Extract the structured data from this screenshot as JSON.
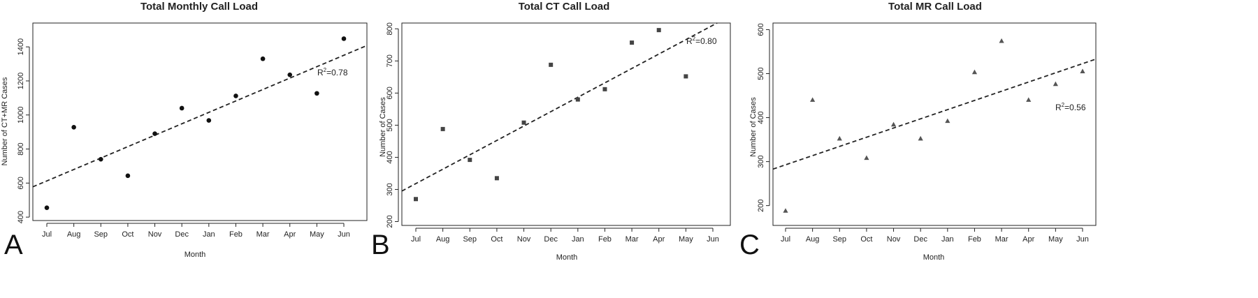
{
  "chart_data": [
    {
      "panel_letter": "A",
      "type": "scatter",
      "title": "Total Monthly Call Load",
      "xlabel": "Month",
      "ylabel": "Number of CT+MR Cases",
      "categories": [
        "Jul",
        "Aug",
        "Sep",
        "Oct",
        "Nov",
        "Dec",
        "Jan",
        "Feb",
        "Mar",
        "Apr",
        "May",
        "Jun"
      ],
      "values": [
        455,
        928,
        740,
        643,
        890,
        1040,
        968,
        1112,
        1330,
        1236,
        1127,
        1448
      ],
      "ylim": [
        380,
        1540
      ],
      "yticks": [
        400,
        600,
        800,
        1000,
        1200,
        1400
      ],
      "trend": {
        "start": 578,
        "end": 1408
      },
      "r2_label": {
        "text": "R",
        "sup": "2",
        "value": "=0.78"
      },
      "marker": "circle",
      "color": "#111111"
    },
    {
      "panel_letter": "B",
      "type": "scatter",
      "title": "Total CT Call Load",
      "xlabel": "Month",
      "ylabel": "Number of Cases",
      "categories": [
        "Jul",
        "Aug",
        "Sep",
        "Oct",
        "Nov",
        "Dec",
        "Jan",
        "Feb",
        "Mar",
        "Apr",
        "May",
        "Jun"
      ],
      "values": [
        270,
        488,
        392,
        335,
        508,
        688,
        580,
        612,
        757,
        796,
        652,
        null
      ],
      "ylim": [
        188,
        818
      ],
      "yticks": [
        200,
        300,
        400,
        500,
        600,
        700,
        800
      ],
      "trend": {
        "start": 295,
        "end": 840
      },
      "r2_label": {
        "text": "R",
        "sup": "2",
        "value": "=0.80"
      },
      "marker": "square",
      "color": "#444444"
    },
    {
      "panel_letter": "C",
      "type": "scatter",
      "title": "Total MR Call Load",
      "xlabel": "Month",
      "ylabel": "Number of Cases",
      "categories": [
        "Jul",
        "Aug",
        "Sep",
        "Oct",
        "Nov",
        "Dec",
        "Jan",
        "Feb",
        "Mar",
        "Apr",
        "May",
        "Jun"
      ],
      "values": [
        188,
        440,
        352,
        308,
        384,
        352,
        392,
        503,
        574,
        440,
        476,
        505
      ],
      "ylim": [
        155,
        615
      ],
      "yticks": [
        200,
        300,
        400,
        500,
        600
      ],
      "trend": {
        "start": 283,
        "end": 533
      },
      "r2_label": {
        "text": "R",
        "sup": "2",
        "value": "=0.56"
      },
      "marker": "triangle",
      "color": "#555555"
    }
  ]
}
